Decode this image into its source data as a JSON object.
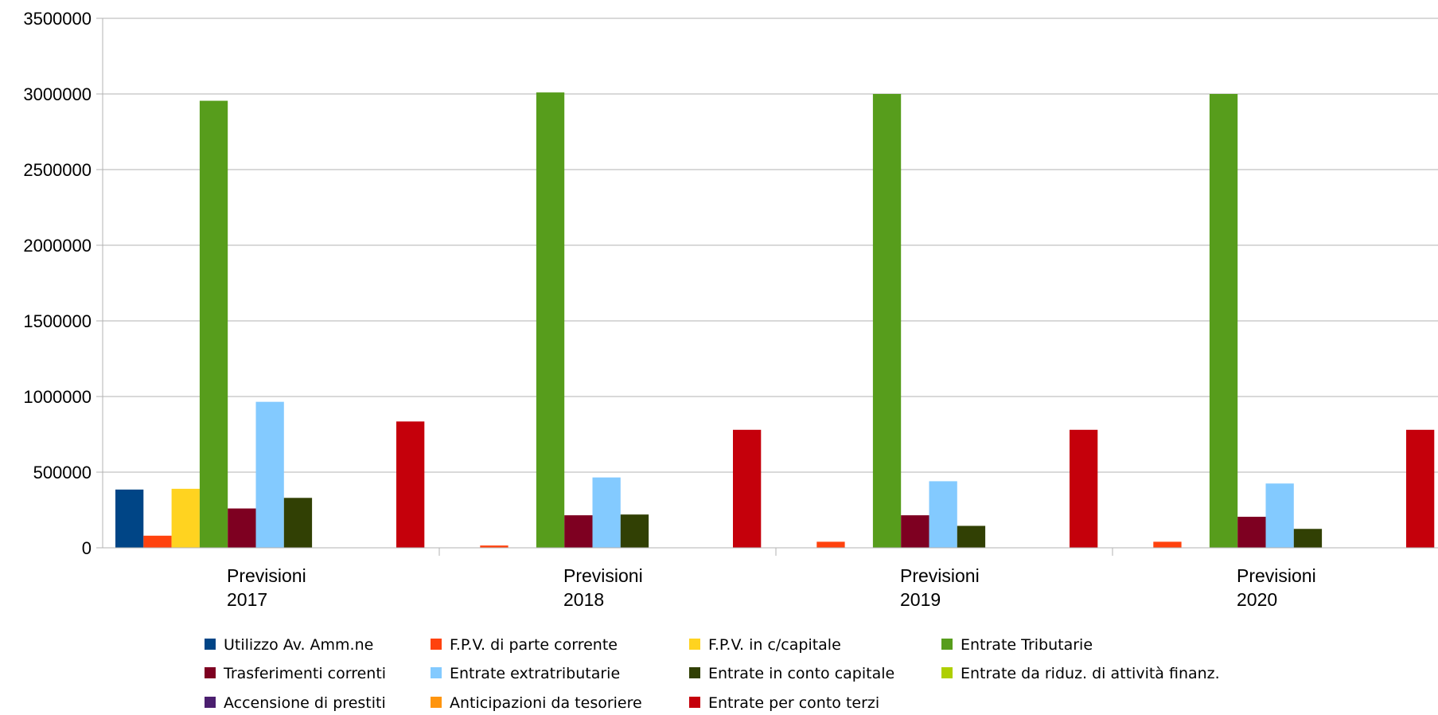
{
  "chart_data": {
    "type": "bar",
    "ylim": [
      0,
      3500000
    ],
    "yticks": [
      "0",
      "500000",
      "1000000",
      "1500000",
      "2000000",
      "2500000",
      "3000000",
      "3500000"
    ],
    "grid": true,
    "legend_position": "bottom",
    "categories": [
      [
        "Previsioni",
        "2017"
      ],
      [
        "Previsioni",
        "2018"
      ],
      [
        "Previsioni",
        "2019"
      ],
      [
        "Previsioni",
        "2020"
      ]
    ],
    "series": [
      {
        "name": "Utilizzo Av. Amm.ne",
        "color": "#004586",
        "values": [
          385000,
          0,
          0,
          0
        ]
      },
      {
        "name": "F.P.V. di parte corrente",
        "color": "#ff420e",
        "values": [
          80000,
          15000,
          40000,
          40000
        ]
      },
      {
        "name": "F.P.V.  in c/capitale",
        "color": "#ffd320",
        "values": [
          390000,
          0,
          0,
          0
        ]
      },
      {
        "name": "Entrate Tributarie",
        "color": "#579d1c",
        "values": [
          2955000,
          3010000,
          3000000,
          3000000
        ]
      },
      {
        "name": "Trasferimenti correnti",
        "color": "#7e0021",
        "values": [
          260000,
          215000,
          215000,
          205000
        ]
      },
      {
        "name": "Entrate extratributarie",
        "color": "#83caff",
        "values": [
          965000,
          465000,
          440000,
          425000
        ]
      },
      {
        "name": "Entrate in conto capitale",
        "color": "#314004",
        "values": [
          330000,
          220000,
          145000,
          125000
        ]
      },
      {
        "name": "Entrate da riduz. di attività finanz.",
        "color": "#aecf00",
        "values": [
          0,
          0,
          0,
          0
        ]
      },
      {
        "name": "Accensione di prestiti",
        "color": "#4b1f6f",
        "values": [
          0,
          0,
          0,
          0
        ]
      },
      {
        "name": "Anticipazioni da tesoriere",
        "color": "#ff950e",
        "values": [
          0,
          0,
          0,
          0
        ]
      },
      {
        "name": "Entrate per conto terzi",
        "color": "#c5000b",
        "values": [
          835000,
          780000,
          780000,
          780000
        ]
      }
    ]
  }
}
